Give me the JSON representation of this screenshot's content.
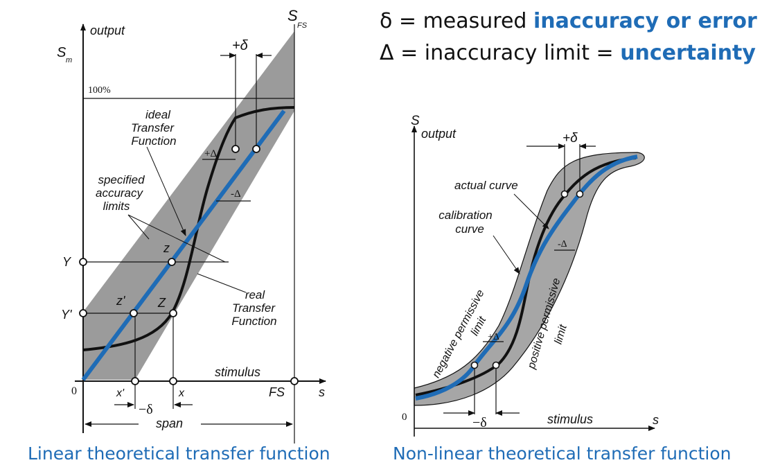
{
  "legend": {
    "line1": {
      "symbol": "δ",
      "text": " = measured ",
      "highlight": "inaccuracy or error"
    },
    "line2": {
      "symbol": "Δ",
      "text": " = inaccuracy limit = ",
      "highlight": "uncertainty"
    }
  },
  "captions": {
    "left": "Linear theoretical transfer function",
    "right": "Non-linear theoretical transfer function"
  },
  "left_diagram": {
    "y_axis_label": "output",
    "sm": "S",
    "sm_sub": "m",
    "sfs": "S",
    "sfs_sub": "FS",
    "hundred": "100%",
    "plus_delta_top": "+δ",
    "ideal_label": [
      "ideal",
      "Transfer",
      "Function"
    ],
    "accuracy_label": [
      "specified",
      "accuracy",
      "limits"
    ],
    "plus_Delta": "+Δ",
    "minus_Delta": "-Δ",
    "z": "z",
    "z_prime": "z'",
    "Z": "Z",
    "Y": "Y",
    "Y_prime": "Y'",
    "real_label": [
      "real",
      "Transfer",
      "Function"
    ],
    "stimulus": "stimulus",
    "origin": "0",
    "x_prime": "x'",
    "x": "x",
    "FS": "FS",
    "s": "s",
    "minus_delta": "−δ",
    "span": "span"
  },
  "right_diagram": {
    "y_axis_symbol": "S",
    "y_axis_label": "output",
    "plus_delta_top": "+δ",
    "actual_curve": "actual curve",
    "calibration_curve": [
      "calibration",
      "curve"
    ],
    "minus_Delta": "-Δ",
    "negative_limit": [
      "negative permissive",
      "limit"
    ],
    "positive_limit": [
      "positive permissive",
      "limit"
    ],
    "plus_Delta": "+Δ",
    "origin": "0",
    "minus_delta": "−δ",
    "stimulus": "stimulus",
    "s": "s"
  },
  "colors": {
    "band": "#9b9b9b",
    "band_light": "#a6a6a6",
    "blue_line": "#1f6cb6",
    "curve": "#111111"
  }
}
